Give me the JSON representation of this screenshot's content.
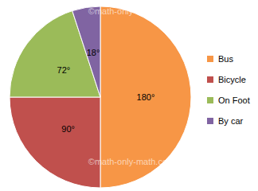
{
  "chart_data": {
    "type": "pie",
    "categories": [
      "Bus",
      "Bicycle",
      "On Foot",
      "By car"
    ],
    "values": [
      180,
      90,
      72,
      18
    ],
    "value_labels": [
      "180°",
      "90°",
      "72°",
      "18°"
    ],
    "colors": [
      "#f79646",
      "#c0504d",
      "#9bbb59",
      "#8064a2"
    ],
    "data_labels": true,
    "legend": "right",
    "annotations": [
      "©math-only-math.com",
      "©math-only-math.com"
    ]
  }
}
